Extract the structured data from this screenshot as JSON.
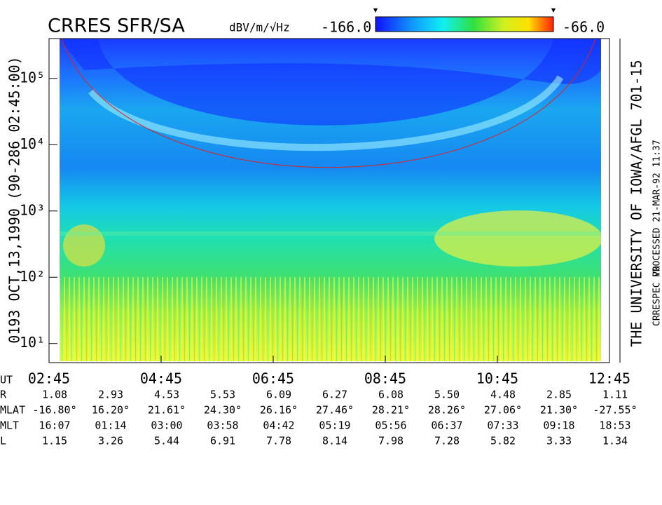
{
  "chart_data": {
    "type": "spectrogram",
    "title": "CRRES SFR/SA",
    "colorbar": {
      "label": "dBV/m/√Hz",
      "clim": [
        {
          "value": -166,
          "label": "-166.0"
        },
        {
          "value": -66,
          "label": "-66.0"
        }
      ]
    },
    "ylabel": "0193   OCT,13,1990   (90-286 02:45:00)",
    "right_labels": [
      "THE UNIVERSITY OF IOWA/AFGL 701-15",
      "PROCESSED 21-MAR-92  11:37",
      "CRRESPEC V0"
    ],
    "log_y": true,
    "ylim": [
      5.4,
      400000
    ],
    "yticks": [
      {
        "value": 10,
        "label": "10¹"
      },
      {
        "value": 100,
        "label": "10²"
      },
      {
        "value": 1000,
        "label": "10³"
      },
      {
        "value": 10000,
        "label": "10⁴"
      },
      {
        "value": 100000,
        "label": "10⁵"
      }
    ],
    "xlim": [
      2.75,
      12.75
    ],
    "xticks": [
      {
        "value": 2.75,
        "label": "02:45"
      },
      {
        "value": 4.75,
        "label": "04:45"
      },
      {
        "value": 6.75,
        "label": "06:45"
      },
      {
        "value": 8.75,
        "label": "08:45"
      },
      {
        "value": 10.75,
        "label": "10:45"
      },
      {
        "value": 12.75,
        "label": "12:45"
      }
    ],
    "ephemeris": {
      "header": "UT",
      "labels": [
        "R",
        "MLAT",
        "MLT",
        "L"
      ],
      "rows": [
        [
          "1.08",
          "2.93",
          "4.53",
          "5.53",
          "6.09",
          "6.27",
          "6.08",
          "5.50",
          "4.48",
          "2.85",
          "1.11"
        ],
        [
          "-16.80°",
          "16.20°",
          "21.61°",
          "24.30°",
          "26.16°",
          "27.46°",
          "28.21°",
          "28.26°",
          "27.06°",
          "21.30°",
          "-27.55°"
        ],
        [
          "16:07",
          "01:14",
          "03:00",
          "03:58",
          "04:42",
          "05:19",
          "05:56",
          "06:37",
          "07:33",
          "09:18",
          "18:53"
        ],
        [
          "1.15",
          "3.26",
          "5.44",
          "6.91",
          "7.78",
          "8.14",
          "7.98",
          "7.28",
          "5.82",
          "3.33",
          "1.34"
        ]
      ]
    }
  }
}
